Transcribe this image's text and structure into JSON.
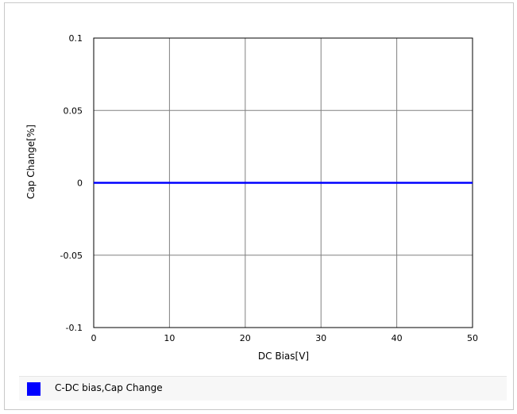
{
  "chart_data": {
    "type": "line",
    "x_ticks": [
      0,
      10,
      20,
      30,
      40,
      50
    ],
    "y_ticks": [
      0.1,
      0.05,
      0,
      -0.05,
      -0.1
    ],
    "y_tick_labels": [
      "0.1",
      "0.05",
      "0",
      "-0.05",
      "-0.1"
    ],
    "xlim": [
      0,
      50
    ],
    "ylim": [
      -0.1,
      0.1
    ],
    "xlabel": "DC Bias[V]",
    "ylabel": "Cap Change[%]",
    "grid": true,
    "legend_position": "bottom",
    "series": [
      {
        "name": "C-DC bias,Cap Change",
        "color": "#0000ff",
        "x": [
          0,
          50
        ],
        "y": [
          0,
          0
        ]
      }
    ]
  }
}
